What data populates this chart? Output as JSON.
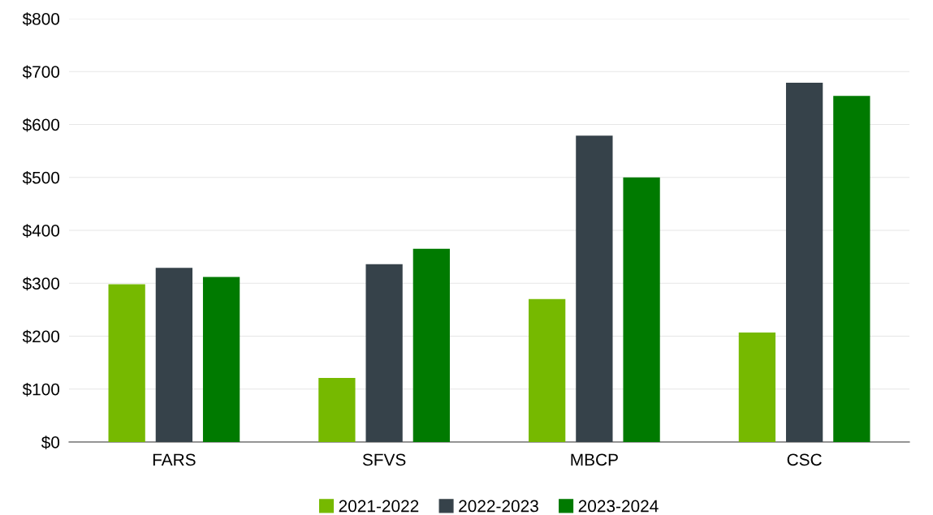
{
  "chart_data": {
    "type": "bar",
    "categories": [
      "FARS",
      "SFVS",
      "MBCP",
      "CSC"
    ],
    "series": [
      {
        "name": "2021-2022",
        "color": "#76b900",
        "values": [
          298,
          121,
          270,
          207
        ]
      },
      {
        "name": "2022-2023",
        "color": "#36424a",
        "values": [
          329,
          336,
          579,
          679
        ]
      },
      {
        "name": "2023-2024",
        "color": "#007a00",
        "values": [
          312,
          365,
          500,
          654
        ]
      }
    ],
    "ylim": [
      0,
      800
    ],
    "yticks": [
      {
        "value": 0,
        "label": "$0"
      },
      {
        "value": 100,
        "label": "$100"
      },
      {
        "value": 200,
        "label": "$200"
      },
      {
        "value": 300,
        "label": "$300"
      },
      {
        "value": 400,
        "label": "$400"
      },
      {
        "value": 500,
        "label": "$500"
      },
      {
        "value": 600,
        "label": "$600"
      },
      {
        "value": 700,
        "label": "$700"
      },
      {
        "value": 800,
        "label": "$800"
      }
    ],
    "grid": "y",
    "legend": "bottom"
  }
}
